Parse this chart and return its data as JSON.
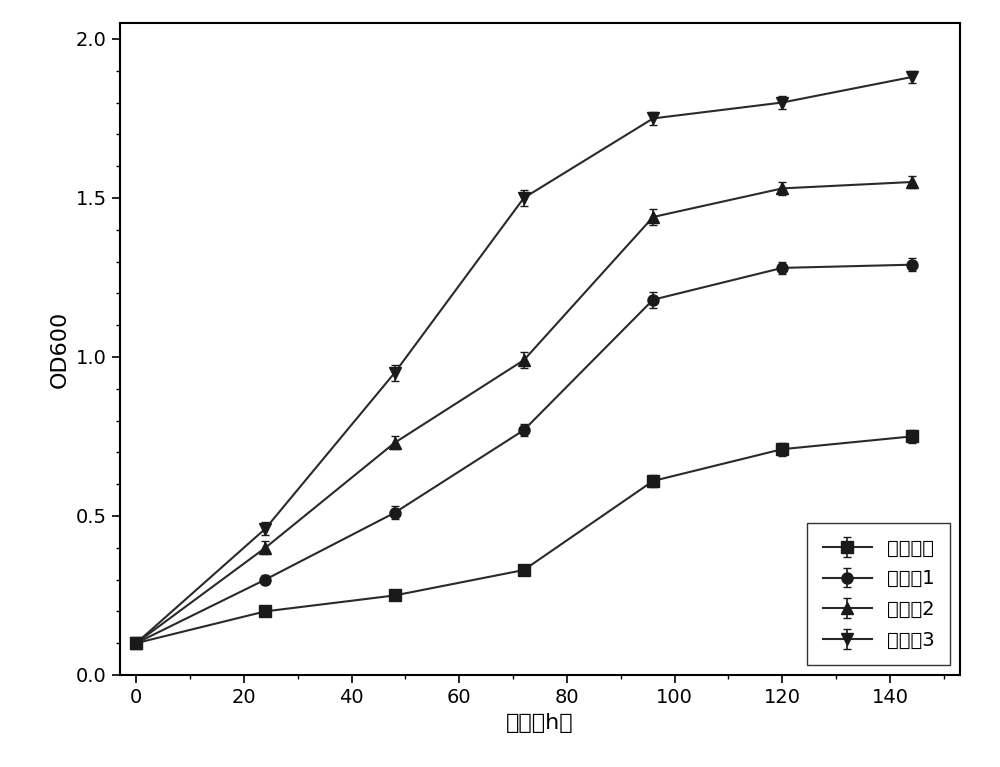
{
  "x": [
    0,
    24,
    48,
    72,
    96,
    120,
    144
  ],
  "series_order": [
    "未添加组",
    "实施例1",
    "实施例2",
    "实施例3"
  ],
  "series": {
    "未添加组": {
      "y": [
        0.1,
        0.2,
        0.25,
        0.33,
        0.61,
        0.71,
        0.75
      ],
      "yerr": [
        0.005,
        0.015,
        0.015,
        0.015,
        0.02,
        0.02,
        0.02
      ],
      "marker": "s",
      "label": "未添加组"
    },
    "实施例1": {
      "y": [
        0.1,
        0.3,
        0.51,
        0.77,
        1.18,
        1.28,
        1.29
      ],
      "yerr": [
        0.005,
        0.015,
        0.02,
        0.02,
        0.025,
        0.02,
        0.02
      ],
      "marker": "o",
      "label": "实施例1"
    },
    "实施例2": {
      "y": [
        0.1,
        0.4,
        0.73,
        0.99,
        1.44,
        1.53,
        1.55
      ],
      "yerr": [
        0.005,
        0.02,
        0.02,
        0.025,
        0.025,
        0.02,
        0.02
      ],
      "marker": "^",
      "label": "实施例2"
    },
    "实施例3": {
      "y": [
        0.1,
        0.46,
        0.95,
        1.5,
        1.75,
        1.8,
        1.88
      ],
      "yerr": [
        0.005,
        0.02,
        0.025,
        0.025,
        0.02,
        0.02,
        0.02
      ],
      "marker": "v",
      "label": "实施例3"
    }
  },
  "xlabel": "时间（h）",
  "ylabel": "OD600",
  "xlim": [
    -3,
    153
  ],
  "ylim": [
    0.0,
    2.05
  ],
  "xticks": [
    0,
    20,
    40,
    60,
    80,
    100,
    120,
    140
  ],
  "yticks": [
    0.0,
    0.5,
    1.0,
    1.5,
    2.0
  ],
  "line_color": "#2a2a2a",
  "marker_color": "#1a1a1a",
  "marker_size": 8,
  "linewidth": 1.5,
  "capsize": 3,
  "elinewidth": 1.2,
  "legend_loc": "lower right",
  "font_size_label": 16,
  "font_size_tick": 14,
  "font_size_legend": 14,
  "figure_bg": "#ffffff",
  "axes_bg": "#ffffff",
  "minor_xtick_interval": 10,
  "minor_ytick_interval": 0.1
}
